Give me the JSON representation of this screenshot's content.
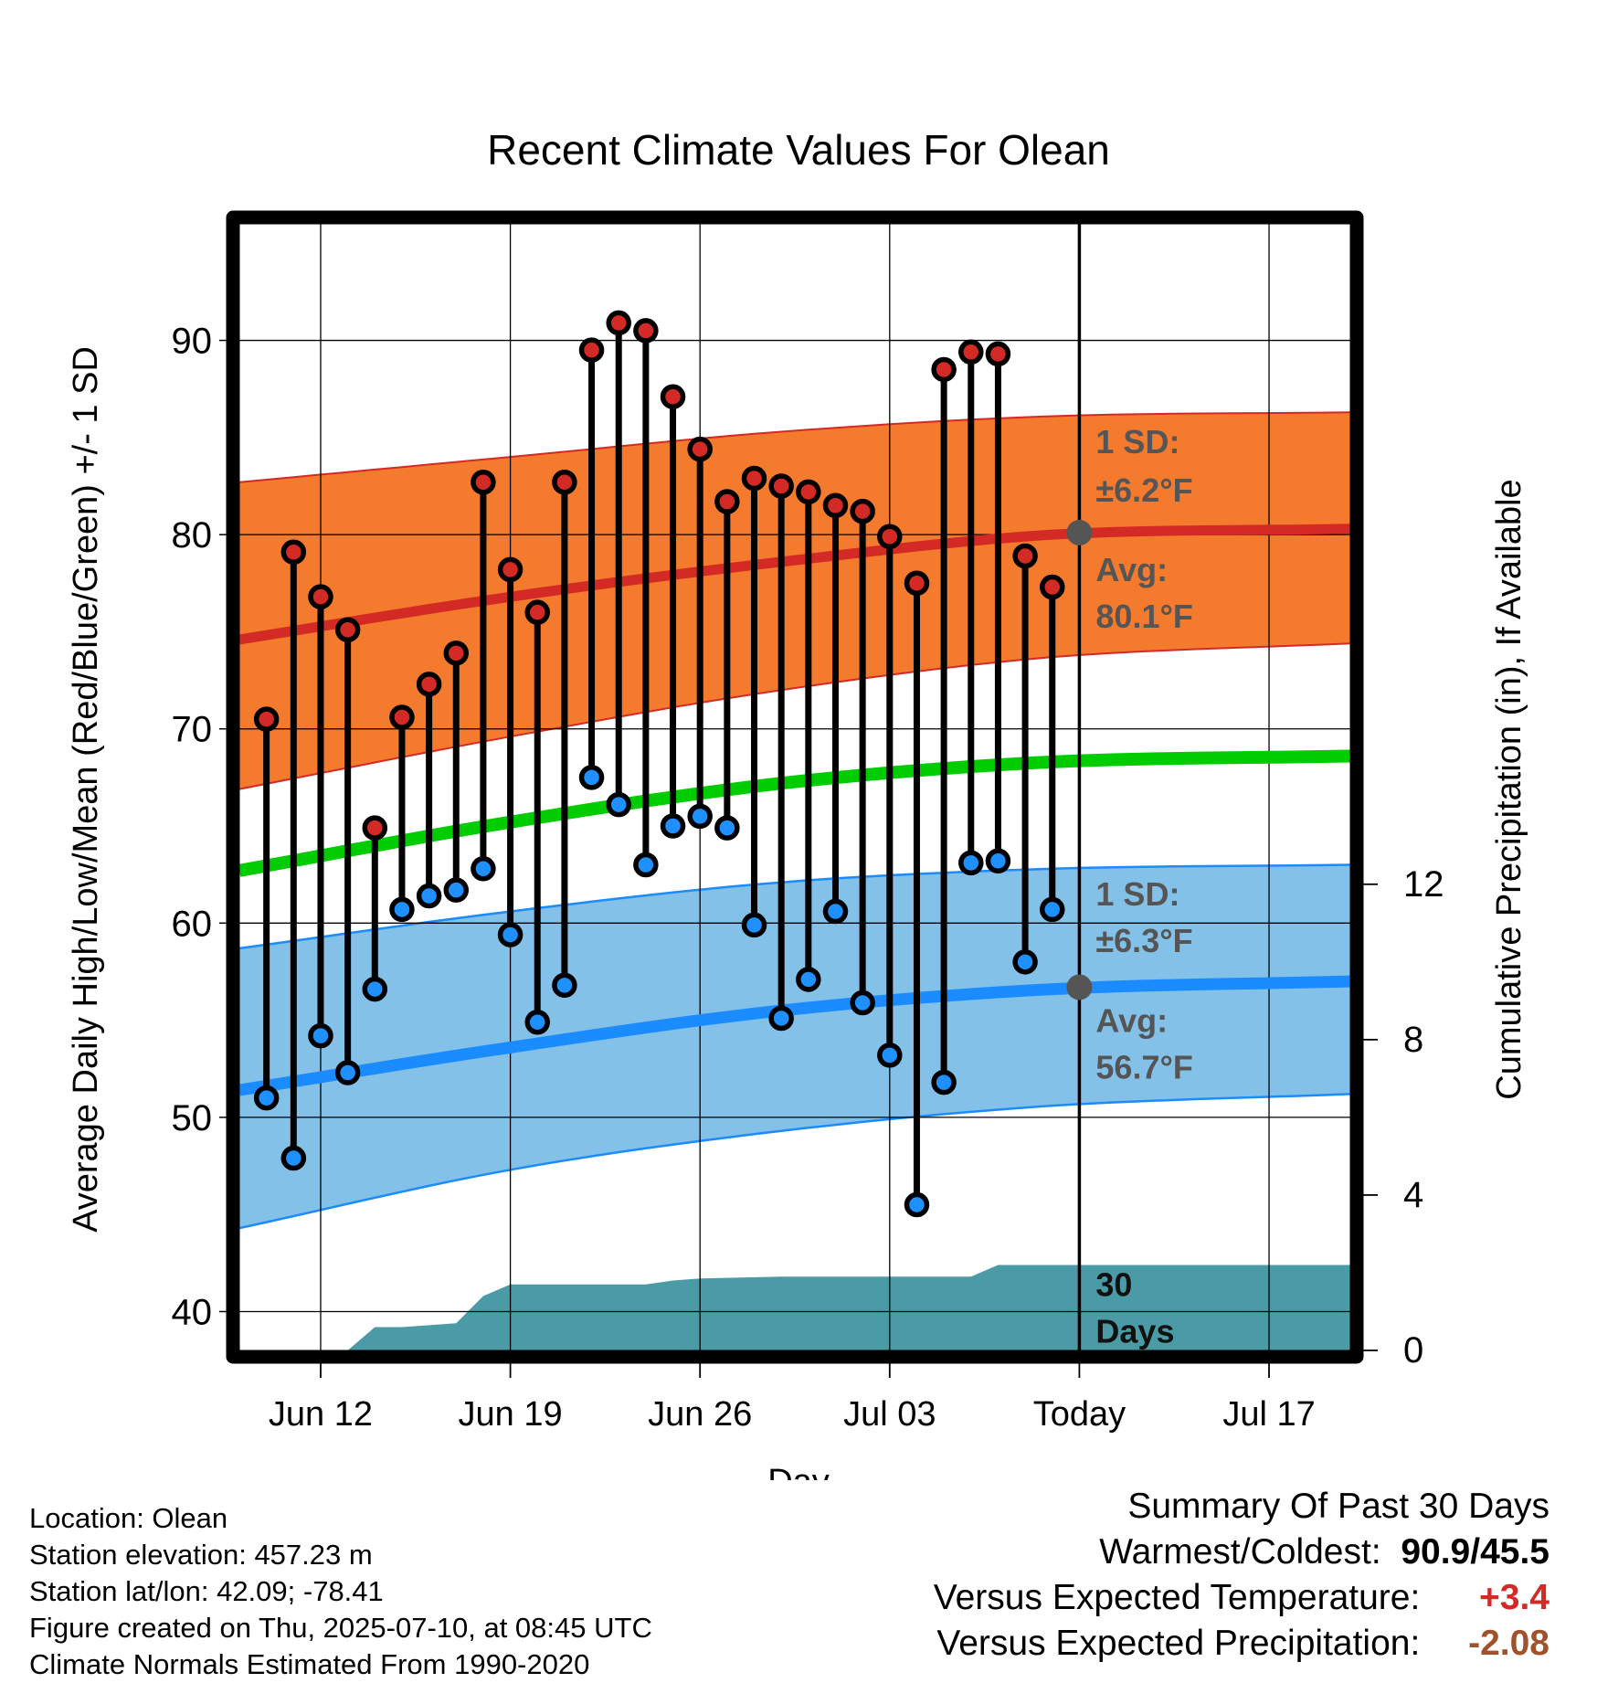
{
  "chart_data": {
    "type": "line",
    "title": "Recent Climate Values For Olean",
    "xlabel": "Day",
    "ylabel": "Average Daily High/Low/Mean (Red/Blue/Green) +/- 1 SD",
    "y2label": "Cumulative Precipitation (in), If Available",
    "ylim": [
      38,
      96
    ],
    "y2lim": [
      0,
      29
    ],
    "xlim": [
      "2025-06-09",
      "2025-07-20"
    ],
    "x_ticks": [
      {
        "date": "2025-06-12",
        "label": "Jun 12"
      },
      {
        "date": "2025-06-19",
        "label": "Jun 19"
      },
      {
        "date": "2025-06-26",
        "label": "Jun 26"
      },
      {
        "date": "2025-07-03",
        "label": "Jul 03"
      },
      {
        "date": "2025-07-10",
        "label": "Today"
      },
      {
        "date": "2025-07-17",
        "label": "Jul 17"
      }
    ],
    "y_ticks": [
      40,
      50,
      60,
      70,
      80,
      90
    ],
    "y2_ticks": [
      0,
      4,
      8,
      12
    ],
    "today": "2025-07-10",
    "grid": true,
    "normal_high": {
      "x": [
        "2025-06-09",
        "2025-06-19",
        "2025-06-29",
        "2025-07-09",
        "2025-07-20"
      ],
      "values": [
        74.6,
        76.8,
        78.6,
        80.0,
        80.3
      ]
    },
    "normal_high_band": {
      "x": [
        "2025-06-09",
        "2025-06-19",
        "2025-06-29",
        "2025-07-09",
        "2025-07-20"
      ],
      "upper": [
        82.7,
        84.0,
        85.3,
        86.1,
        86.3
      ],
      "lower": [
        66.9,
        69.6,
        72.0,
        73.7,
        74.4
      ]
    },
    "normal_mean": {
      "x": [
        "2025-06-09",
        "2025-06-19",
        "2025-06-29",
        "2025-07-09",
        "2025-07-20"
      ],
      "values": [
        62.7,
        65.2,
        67.2,
        68.3,
        68.6
      ]
    },
    "normal_low": {
      "x": [
        "2025-06-09",
        "2025-06-19",
        "2025-06-29",
        "2025-07-09",
        "2025-07-20"
      ],
      "values": [
        51.4,
        53.6,
        55.5,
        56.6,
        57.0
      ]
    },
    "normal_low_band": {
      "x": [
        "2025-06-09",
        "2025-06-19",
        "2025-06-29",
        "2025-07-09",
        "2025-07-20"
      ],
      "upper": [
        58.7,
        60.6,
        62.1,
        62.8,
        63.0
      ],
      "lower": [
        44.3,
        47.3,
        49.3,
        50.6,
        51.2
      ]
    },
    "highs": {
      "x": [
        "2025-06-10",
        "2025-06-11",
        "2025-06-12",
        "2025-06-13",
        "2025-06-14",
        "2025-06-15",
        "2025-06-16",
        "2025-06-17",
        "2025-06-18",
        "2025-06-19",
        "2025-06-20",
        "2025-06-21",
        "2025-06-22",
        "2025-06-23",
        "2025-06-24",
        "2025-06-25",
        "2025-06-26",
        "2025-06-27",
        "2025-06-28",
        "2025-06-29",
        "2025-06-30",
        "2025-07-01",
        "2025-07-02",
        "2025-07-03",
        "2025-07-04",
        "2025-07-05",
        "2025-07-06",
        "2025-07-07",
        "2025-07-08",
        "2025-07-09"
      ],
      "values": [
        70.5,
        79.1,
        76.8,
        75.1,
        64.9,
        70.6,
        72.3,
        73.9,
        82.7,
        78.2,
        76.0,
        82.7,
        89.5,
        90.9,
        90.5,
        87.1,
        84.4,
        81.7,
        82.9,
        82.5,
        82.2,
        81.5,
        81.2,
        79.9,
        77.5,
        88.5,
        89.4,
        89.3,
        78.9,
        77.3
      ]
    },
    "lows": {
      "x": [
        "2025-06-10",
        "2025-06-11",
        "2025-06-12",
        "2025-06-13",
        "2025-06-14",
        "2025-06-15",
        "2025-06-16",
        "2025-06-17",
        "2025-06-18",
        "2025-06-19",
        "2025-06-20",
        "2025-06-21",
        "2025-06-22",
        "2025-06-23",
        "2025-06-24",
        "2025-06-25",
        "2025-06-26",
        "2025-06-27",
        "2025-06-28",
        "2025-06-29",
        "2025-06-30",
        "2025-07-01",
        "2025-07-02",
        "2025-07-03",
        "2025-07-04",
        "2025-07-05",
        "2025-07-06",
        "2025-07-07",
        "2025-07-08",
        "2025-07-09"
      ],
      "values": [
        51.0,
        47.9,
        54.2,
        52.3,
        56.6,
        60.7,
        61.4,
        61.7,
        62.8,
        59.4,
        54.9,
        56.8,
        67.5,
        66.1,
        63.0,
        65.0,
        65.5,
        64.9,
        59.9,
        55.1,
        57.1,
        60.6,
        55.9,
        53.2,
        45.5,
        51.8,
        63.1,
        63.2,
        58.0,
        60.7
      ]
    },
    "today_high_normal": {
      "value": 80.1,
      "label": "Avg:",
      "value_label": "80.1°F"
    },
    "today_low_normal": {
      "value": 56.7,
      "label": "Avg:",
      "value_label": "56.7°F"
    },
    "high_sd_label": {
      "label": "1 SD:",
      "value_label": "±6.2°F"
    },
    "low_sd_label": {
      "label": "1 SD:",
      "value_label": "±6.3°F"
    },
    "precip_label": {
      "line1": "30",
      "line2": "Days"
    },
    "precip": {
      "x": [
        "2025-06-09",
        "2025-06-13",
        "2025-06-14",
        "2025-06-15",
        "2025-06-17",
        "2025-06-18",
        "2025-06-19",
        "2025-06-24",
        "2025-06-25",
        "2025-06-26",
        "2025-06-29",
        "2025-07-06",
        "2025-07-07",
        "2025-07-20"
      ],
      "values": [
        0,
        0,
        0.6,
        0.6,
        0.7,
        1.4,
        1.7,
        1.7,
        1.8,
        1.85,
        1.9,
        1.9,
        2.2,
        2.2
      ]
    },
    "colors": {
      "high_band": "#f47a2e",
      "high_line": "#d42a25",
      "mean_line": "#00cc00",
      "low_band": "#84c1e8",
      "low_line": "#1a8cff",
      "low_band_edge": "#1a8cff",
      "precip": "#4a9ba6",
      "high_marker": "#d42a25",
      "low_marker": "#1e90ff",
      "today_marker": "#555555",
      "label_gray": "#555555"
    }
  },
  "info": {
    "location": "Location: Olean",
    "elevation": "Station elevation: 457.23 m",
    "latlon": "Station lat/lon: 42.09; -78.41",
    "created": "Figure created on Thu, 2025-07-10, at 08:45 UTC",
    "normals": "Climate Normals Estimated From 1990-2020"
  },
  "summary": {
    "title": "Summary Of Past 30 Days",
    "warm_cold_label": "Warmest/Coldest:",
    "warm_cold_value": "90.9/45.5",
    "temp_label": "Versus Expected Temperature:",
    "temp_value": "+3.4",
    "temp_color": "#d42a25",
    "precip_label": "Versus Expected Precipitation:",
    "precip_value": "-2.08",
    "precip_color": "#a0522d"
  }
}
